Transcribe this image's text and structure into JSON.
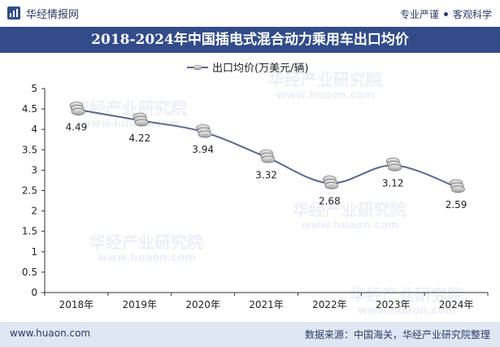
{
  "header": {
    "brand": "华经情报网",
    "slogan_left": "专业严谨",
    "slogan_right": "客观科学"
  },
  "title": "2018-2024年中国插电式混合动力乘用车出口均价",
  "watermark": {
    "cn": "华经产业研究院",
    "url": "www.huaon.com"
  },
  "footer": {
    "website": "www.huaon.com",
    "source": "数据来源：中国海关，华经产业研究院整理"
  },
  "colors": {
    "title_bg": "#324c8a",
    "line": "#5a6a8c",
    "footer_bg": "#dfe7f3"
  },
  "chart_data": {
    "type": "line",
    "categories": [
      "2018年",
      "2019年",
      "2020年",
      "2021年",
      "2022年",
      "2023年",
      "2024年"
    ],
    "series": [
      {
        "name": "出口均价(万美元/辆)",
        "values": [
          4.49,
          4.22,
          3.94,
          3.32,
          2.68,
          3.12,
          2.59
        ]
      }
    ],
    "data_labels": [
      "4.49",
      "4.22",
      "3.94",
      "3.32",
      "2.68",
      "3.12",
      "2.59"
    ],
    "y_ticks": [
      "0",
      "0.5",
      "1",
      "1.5",
      "2",
      "2.5",
      "3",
      "3.5",
      "4",
      "4.5",
      "5"
    ],
    "ylim": [
      0,
      5
    ],
    "legend_position": "top-center",
    "grid": false
  }
}
